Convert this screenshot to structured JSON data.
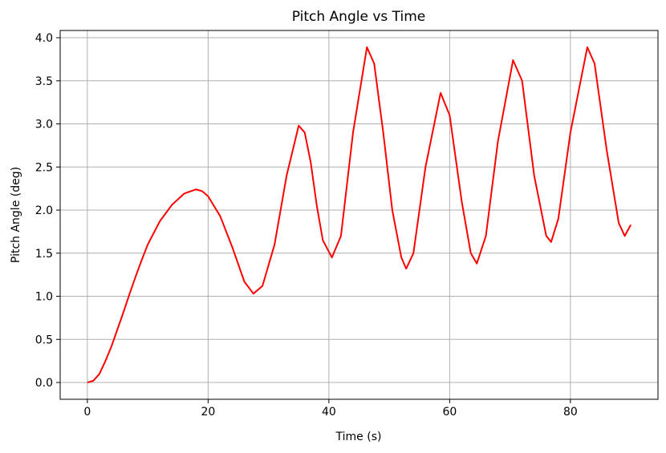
{
  "chart_data": {
    "type": "line",
    "title": "Pitch Angle vs Time",
    "x_label": "Time (s)",
    "y_label": "Pitch Angle (deg)",
    "x": [
      0,
      1,
      2,
      3,
      4,
      5,
      6,
      7,
      8,
      9,
      10,
      12,
      14,
      16,
      18,
      19,
      20,
      22,
      24,
      26,
      27.5,
      29,
      31,
      33,
      35,
      36,
      37,
      38,
      39,
      40.5,
      42,
      44,
      46.3,
      47.5,
      49,
      50.5,
      52,
      52.8,
      54,
      56,
      58.5,
      60,
      62,
      63.5,
      64.5,
      66,
      68,
      70.5,
      72,
      74,
      76,
      76.8,
      78,
      80,
      82.8,
      84,
      86,
      88,
      89,
      90
    ],
    "series": [
      {
        "name": "Pitch Angle",
        "color": "#ff0000",
        "values": [
          0,
          0.02,
          0.1,
          0.25,
          0.42,
          0.62,
          0.82,
          1.03,
          1.23,
          1.42,
          1.6,
          1.87,
          2.06,
          2.19,
          2.24,
          2.22,
          2.16,
          1.93,
          1.57,
          1.17,
          1.03,
          1.12,
          1.6,
          2.4,
          2.98,
          2.9,
          2.55,
          2.05,
          1.65,
          1.45,
          1.7,
          2.9,
          3.89,
          3.7,
          2.9,
          2.0,
          1.45,
          1.32,
          1.5,
          2.5,
          3.36,
          3.1,
          2.1,
          1.5,
          1.38,
          1.7,
          2.8,
          3.74,
          3.5,
          2.4,
          1.7,
          1.63,
          1.9,
          2.9,
          3.89,
          3.7,
          2.7,
          1.85,
          1.7,
          1.83
        ]
      }
    ],
    "xlim": [
      -4.5,
      94.5
    ],
    "ylim": [
      -0.195,
      4.084
    ],
    "xticks": [
      0,
      20,
      40,
      60,
      80
    ],
    "yticks": [
      {
        "value": 0,
        "label": "0.0"
      },
      {
        "value": 0.5,
        "label": "0.5"
      },
      {
        "value": 1,
        "label": "1.0"
      },
      {
        "value": 1.5,
        "label": "1.5"
      },
      {
        "value": 2,
        "label": "2.0"
      },
      {
        "value": 2.5,
        "label": "2.5"
      },
      {
        "value": 3,
        "label": "3.0"
      },
      {
        "value": 3.5,
        "label": "3.5"
      },
      {
        "value": 4,
        "label": "4.0"
      }
    ],
    "grid": true
  }
}
